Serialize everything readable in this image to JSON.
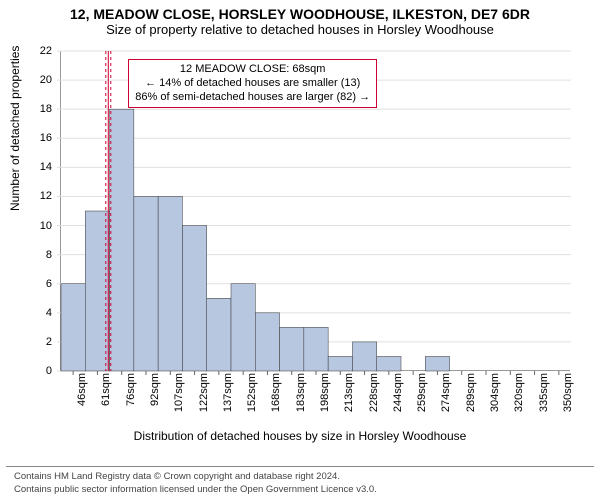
{
  "header": {
    "title": "12, MEADOW CLOSE, HORSLEY WOODHOUSE, ILKESTON, DE7 6DR",
    "subtitle": "Size of property relative to detached houses in Horsley Woodhouse"
  },
  "chart": {
    "type": "histogram",
    "y_axis_label": "Number of detached properties",
    "x_axis_label": "Distribution of detached houses by size in Horsley Woodhouse",
    "ylim": [
      0,
      22
    ],
    "ytick_step": 2,
    "background_color": "#ffffff",
    "grid_color": "#e0e0e0",
    "bar_fill": "#b8c7e0",
    "bar_stroke": "#333333",
    "reference_line_color": "#cc0033",
    "reference_value": 68,
    "bars": [
      {
        "label": "46sqm",
        "value": 6
      },
      {
        "label": "61sqm",
        "value": 11
      },
      {
        "label": "76sqm",
        "value": 18
      },
      {
        "label": "92sqm",
        "value": 12
      },
      {
        "label": "107sqm",
        "value": 12
      },
      {
        "label": "122sqm",
        "value": 10
      },
      {
        "label": "137sqm",
        "value": 5
      },
      {
        "label": "152sqm",
        "value": 6
      },
      {
        "label": "168sqm",
        "value": 4
      },
      {
        "label": "183sqm",
        "value": 3
      },
      {
        "label": "198sqm",
        "value": 3
      },
      {
        "label": "213sqm",
        "value": 1
      },
      {
        "label": "228sqm",
        "value": 2
      },
      {
        "label": "244sqm",
        "value": 1
      },
      {
        "label": "259sqm",
        "value": 0
      },
      {
        "label": "274sqm",
        "value": 1
      },
      {
        "label": "289sqm",
        "value": 0
      },
      {
        "label": "304sqm",
        "value": 0
      },
      {
        "label": "320sqm",
        "value": 0
      },
      {
        "label": "335sqm",
        "value": 0
      },
      {
        "label": "350sqm",
        "value": 0
      }
    ],
    "annotation": {
      "line1": "12 MEADOW CLOSE: 68sqm",
      "line2": "← 14% of detached houses are smaller (13)",
      "line3": "86% of semi-detached houses are larger (82) →",
      "box_border_color": "#cc0033"
    }
  },
  "footer": {
    "line1": "Contains HM Land Registry data © Crown copyright and database right 2024.",
    "line2": "Contains public sector information licensed under the Open Government Licence v3.0."
  }
}
